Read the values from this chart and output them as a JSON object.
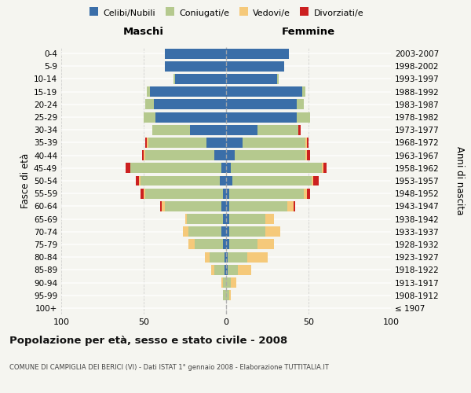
{
  "age_groups": [
    "100+",
    "95-99",
    "90-94",
    "85-89",
    "80-84",
    "75-79",
    "70-74",
    "65-69",
    "60-64",
    "55-59",
    "50-54",
    "45-49",
    "40-44",
    "35-39",
    "30-34",
    "25-29",
    "20-24",
    "15-19",
    "10-14",
    "5-9",
    "0-4"
  ],
  "birth_years": [
    "≤ 1907",
    "1908-1912",
    "1913-1917",
    "1918-1922",
    "1923-1927",
    "1928-1932",
    "1933-1937",
    "1938-1942",
    "1943-1947",
    "1948-1952",
    "1953-1957",
    "1958-1962",
    "1963-1967",
    "1968-1972",
    "1973-1977",
    "1978-1982",
    "1983-1987",
    "1988-1992",
    "1993-1997",
    "1998-2002",
    "2003-2007"
  ],
  "maschi": {
    "celibi": [
      0,
      0,
      0,
      1,
      1,
      2,
      3,
      2,
      3,
      2,
      4,
      3,
      7,
      12,
      22,
      43,
      44,
      46,
      31,
      37,
      37
    ],
    "coniugati": [
      0,
      2,
      2,
      6,
      9,
      17,
      20,
      22,
      34,
      47,
      48,
      55,
      42,
      35,
      23,
      7,
      5,
      2,
      1,
      0,
      0
    ],
    "vedovi": [
      0,
      0,
      1,
      2,
      3,
      4,
      3,
      1,
      2,
      1,
      1,
      0,
      1,
      1,
      0,
      0,
      0,
      0,
      0,
      0,
      0
    ],
    "divorziati": [
      0,
      0,
      0,
      0,
      0,
      0,
      0,
      0,
      1,
      2,
      2,
      3,
      1,
      1,
      0,
      0,
      0,
      0,
      0,
      0,
      0
    ]
  },
  "femmine": {
    "nubili": [
      0,
      0,
      0,
      1,
      1,
      2,
      2,
      2,
      2,
      2,
      4,
      3,
      5,
      10,
      19,
      43,
      43,
      46,
      31,
      35,
      38
    ],
    "coniugate": [
      0,
      2,
      3,
      6,
      12,
      17,
      22,
      22,
      35,
      45,
      48,
      55,
      43,
      38,
      25,
      8,
      4,
      2,
      1,
      0,
      0
    ],
    "vedove": [
      0,
      1,
      3,
      8,
      12,
      10,
      9,
      5,
      4,
      2,
      1,
      1,
      1,
      1,
      0,
      0,
      0,
      0,
      0,
      0,
      0
    ],
    "divorziate": [
      0,
      0,
      0,
      0,
      0,
      0,
      0,
      0,
      1,
      2,
      3,
      2,
      2,
      1,
      1,
      0,
      0,
      0,
      0,
      0,
      0
    ]
  },
  "colors": {
    "celibi_nubili": "#3a6ea8",
    "coniugati": "#b5c98e",
    "vedovi": "#f5c97a",
    "divorziati": "#cc2020"
  },
  "title": "Popolazione per età, sesso e stato civile - 2008",
  "subtitle": "COMUNE DI CAMPIGLIA DEI BERICI (VI) - Dati ISTAT 1° gennaio 2008 - Elaborazione TUTTITALIA.IT",
  "xlabel_left": "Maschi",
  "xlabel_right": "Femmine",
  "ylabel": "Fasce di età",
  "ylabel_right": "Anni di nascita",
  "xlim": 100,
  "bg_color": "#f5f5f0",
  "grid_color": "#cccccc"
}
